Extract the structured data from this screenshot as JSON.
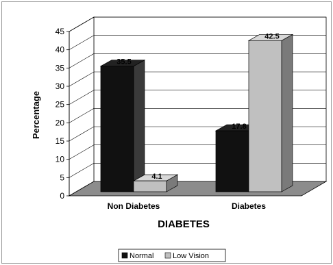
{
  "chart_data": {
    "type": "bar",
    "title": "",
    "xlabel": "DIABETES",
    "ylabel": "Percentage",
    "categories": [
      "Non Diabetes",
      "Diabetes"
    ],
    "series": [
      {
        "name": "Normal",
        "values": [
          35.5,
          17.8
        ],
        "labels": [
          "35.5",
          "17.8"
        ],
        "color": "#111111"
      },
      {
        "name": "Low Vision",
        "values": [
          4.1,
          42.5
        ],
        "labels": [
          "4.1",
          "42.5"
        ],
        "color": "#c0c0c0"
      }
    ],
    "ylim": [
      0,
      45
    ],
    "yticks": [
      "0",
      "5",
      "10",
      "15",
      "20",
      "25",
      "30",
      "35",
      "40",
      "45"
    ],
    "grid": true,
    "legend_position": "bottom"
  }
}
